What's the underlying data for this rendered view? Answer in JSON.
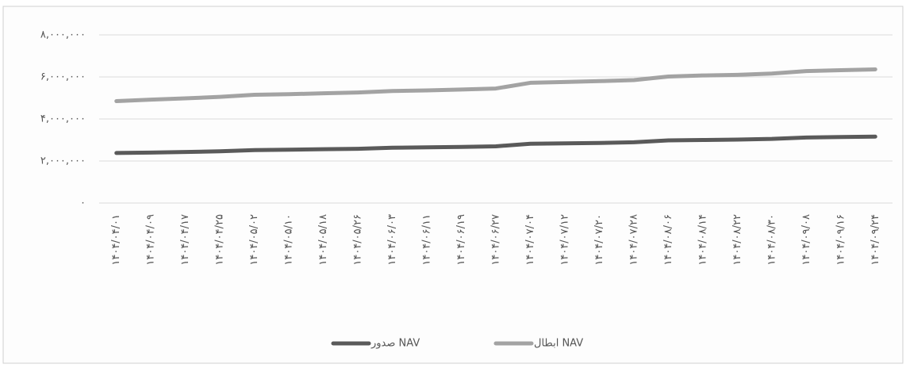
{
  "chart_data": {
    "type": "line",
    "categories": [
      "۱۴۰۴/۰۴/۰۱",
      "۱۴۰۴/۰۴/۰۹",
      "۱۴۰۴/۰۴/۱۷",
      "۱۴۰۴/۰۴/۲۵",
      "۱۴۰۴/۰۵/۰۲",
      "۱۴۰۴/۰۵/۱۰",
      "۱۴۰۴/۰۵/۱۸",
      "۱۴۰۴/۰۵/۲۶",
      "۱۴۰۴/۰۶/۰۳",
      "۱۴۰۴/۰۶/۱۱",
      "۱۴۰۴/۰۶/۱۹",
      "۱۴۰۴/۰۶/۲۷",
      "۱۴۰۴/۰۷/۰۴",
      "۱۴۰۴/۰۷/۱۲",
      "۱۴۰۴/۰۷/۲۰",
      "۱۴۰۴/۰۷/۲۸",
      "۱۴۰۴/۰۸/۰۶",
      "۱۴۰۴/۰۸/۱۴",
      "۱۴۰۴/۰۸/۲۲",
      "۱۴۰۴/۰۸/۳۰",
      "۱۴۰۴/۰۹/۰۸",
      "۱۴۰۴/۰۹/۱۶",
      "۱۴۰۴/۰۹/۲۴"
    ],
    "series": [
      {
        "name": "صدور NAV",
        "color": "#5a5a5a",
        "values": [
          2380000,
          2400000,
          2430000,
          2460000,
          2520000,
          2540000,
          2560000,
          2580000,
          2630000,
          2650000,
          2670000,
          2700000,
          2820000,
          2840000,
          2860000,
          2890000,
          2980000,
          3000000,
          3020000,
          3050000,
          3120000,
          3140000,
          3160000
        ]
      },
      {
        "name": "ابطال NAV",
        "color": "#a3a3a3",
        "values": [
          4850000,
          4920000,
          4980000,
          5050000,
          5150000,
          5180000,
          5220000,
          5260000,
          5330000,
          5360000,
          5400000,
          5450000,
          5720000,
          5760000,
          5800000,
          5850000,
          6020000,
          6070000,
          6100000,
          6160000,
          6280000,
          6320000,
          6360000
        ]
      }
    ],
    "ylim": [
      0,
      8000000
    ],
    "yticks": [
      {
        "value": 0,
        "label": "۰"
      },
      {
        "value": 2000000,
        "label": "۲,۰۰۰,۰۰۰"
      },
      {
        "value": 4000000,
        "label": "۴,۰۰۰,۰۰۰"
      },
      {
        "value": 6000000,
        "label": "۶,۰۰۰,۰۰۰"
      },
      {
        "value": 8000000,
        "label": "۸,۰۰۰,۰۰۰"
      }
    ],
    "grid": true
  }
}
